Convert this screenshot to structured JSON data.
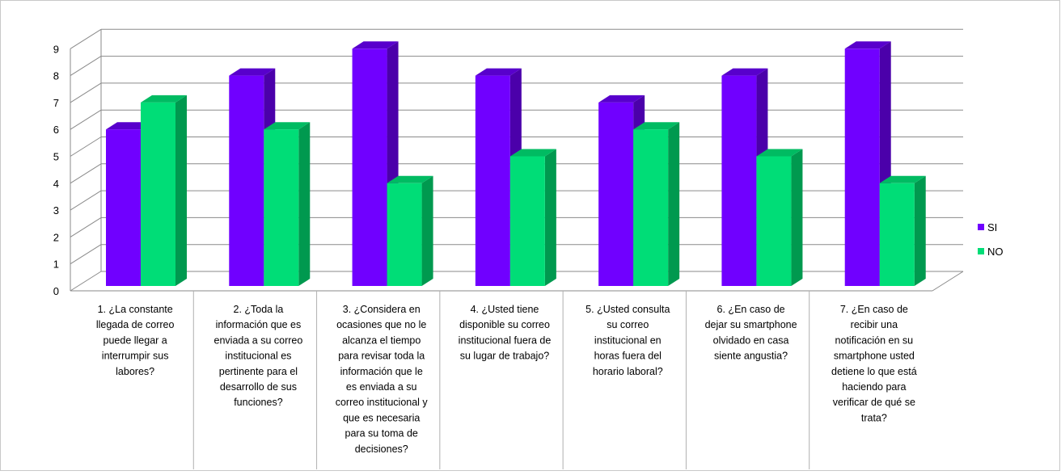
{
  "chart_data": {
    "type": "bar",
    "variant": "3d-clustered-column",
    "title": "",
    "xlabel": "",
    "ylabel": "",
    "ylim": [
      0,
      9
    ],
    "yticks": [
      0,
      1,
      2,
      3,
      4,
      5,
      6,
      7,
      8,
      9
    ],
    "grid": true,
    "legend": "right",
    "categories": [
      [
        "1.   ¿La constante",
        "llegada de correo",
        "puede llegar a",
        "interrumpir sus",
        "labores?"
      ],
      [
        "2.   ¿Toda la",
        "información que es",
        "enviada a su correo",
        "institucional es",
        "pertinente para el",
        "desarrollo de sus",
        "funciones?"
      ],
      [
        "3.   ¿Considera en",
        "ocasiones que no le",
        "alcanza el tiempo",
        "para revisar toda la",
        "información que le",
        "es enviada a su",
        "correo institucional y",
        "que es necesaria",
        "para su toma de",
        "decisiones?"
      ],
      [
        "4.   ¿Usted tiene",
        "disponible su correo",
        "institucional fuera de",
        "su lugar de trabajo?"
      ],
      [
        "5.   ¿Usted consulta",
        "su correo",
        "institucional en",
        "horas fuera del",
        "horario laboral?"
      ],
      [
        "6.   ¿En caso de",
        "dejar su smartphone",
        "olvidado en casa",
        "siente angustia?"
      ],
      [
        "7.   ¿En caso de",
        "recibir una",
        "notificación en su",
        "smartphone usted",
        "detiene lo que está",
        "haciendo para",
        "verificar de qué se",
        "trata?"
      ]
    ],
    "series": [
      {
        "name": "SI",
        "values": [
          6,
          8,
          9,
          8,
          7,
          8,
          9
        ],
        "color": "#7000ff",
        "side": "#4b00aa",
        "top": "#5800cc"
      },
      {
        "name": "NO",
        "values": [
          7,
          6,
          4,
          5,
          6,
          5,
          4
        ],
        "color": "#00dd77",
        "side": "#00994f",
        "top": "#00bb62"
      }
    ]
  }
}
